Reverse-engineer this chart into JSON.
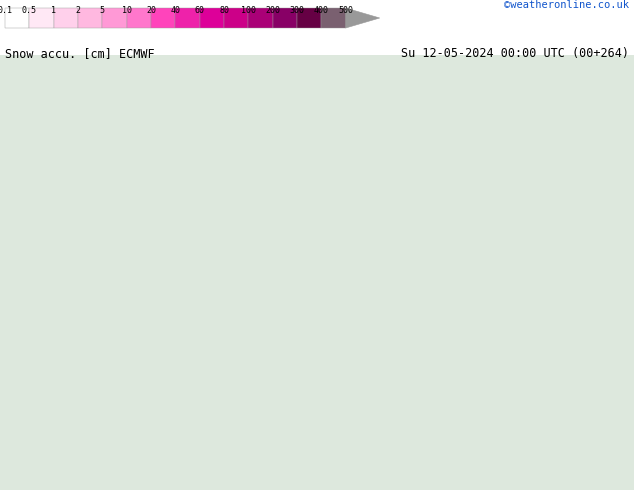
{
  "title_left": "Snow accu. [cm] ECMWF",
  "title_right": "Su 12-05-2024 00:00 UTC (00+264)",
  "credit": "©weatheronline.co.uk",
  "colorbar_levels": [
    0.1,
    0.5,
    1,
    2,
    5,
    10,
    20,
    40,
    60,
    80,
    100,
    200,
    300,
    400,
    500
  ],
  "colorbar_tick_labels": [
    "0.1",
    "0.5",
    "1",
    "2",
    "5",
    "10",
    "20",
    "40",
    "60",
    "80",
    "100",
    "200",
    "300",
    "400",
    "500"
  ],
  "colorbar_colors": [
    "#ffffff",
    "#ffe8f5",
    "#ffd0eb",
    "#ffb8e0",
    "#ff99d6",
    "#ff77cc",
    "#ff44bb",
    "#ee22aa",
    "#dd0099",
    "#cc0088",
    "#aa0077",
    "#880066",
    "#660044",
    "#7a6070",
    "#999999"
  ],
  "bg_color": "#ffffff",
  "map_bg": "#f0f0f0",
  "fig_width": 6.34,
  "fig_height": 4.9,
  "dpi": 100
}
